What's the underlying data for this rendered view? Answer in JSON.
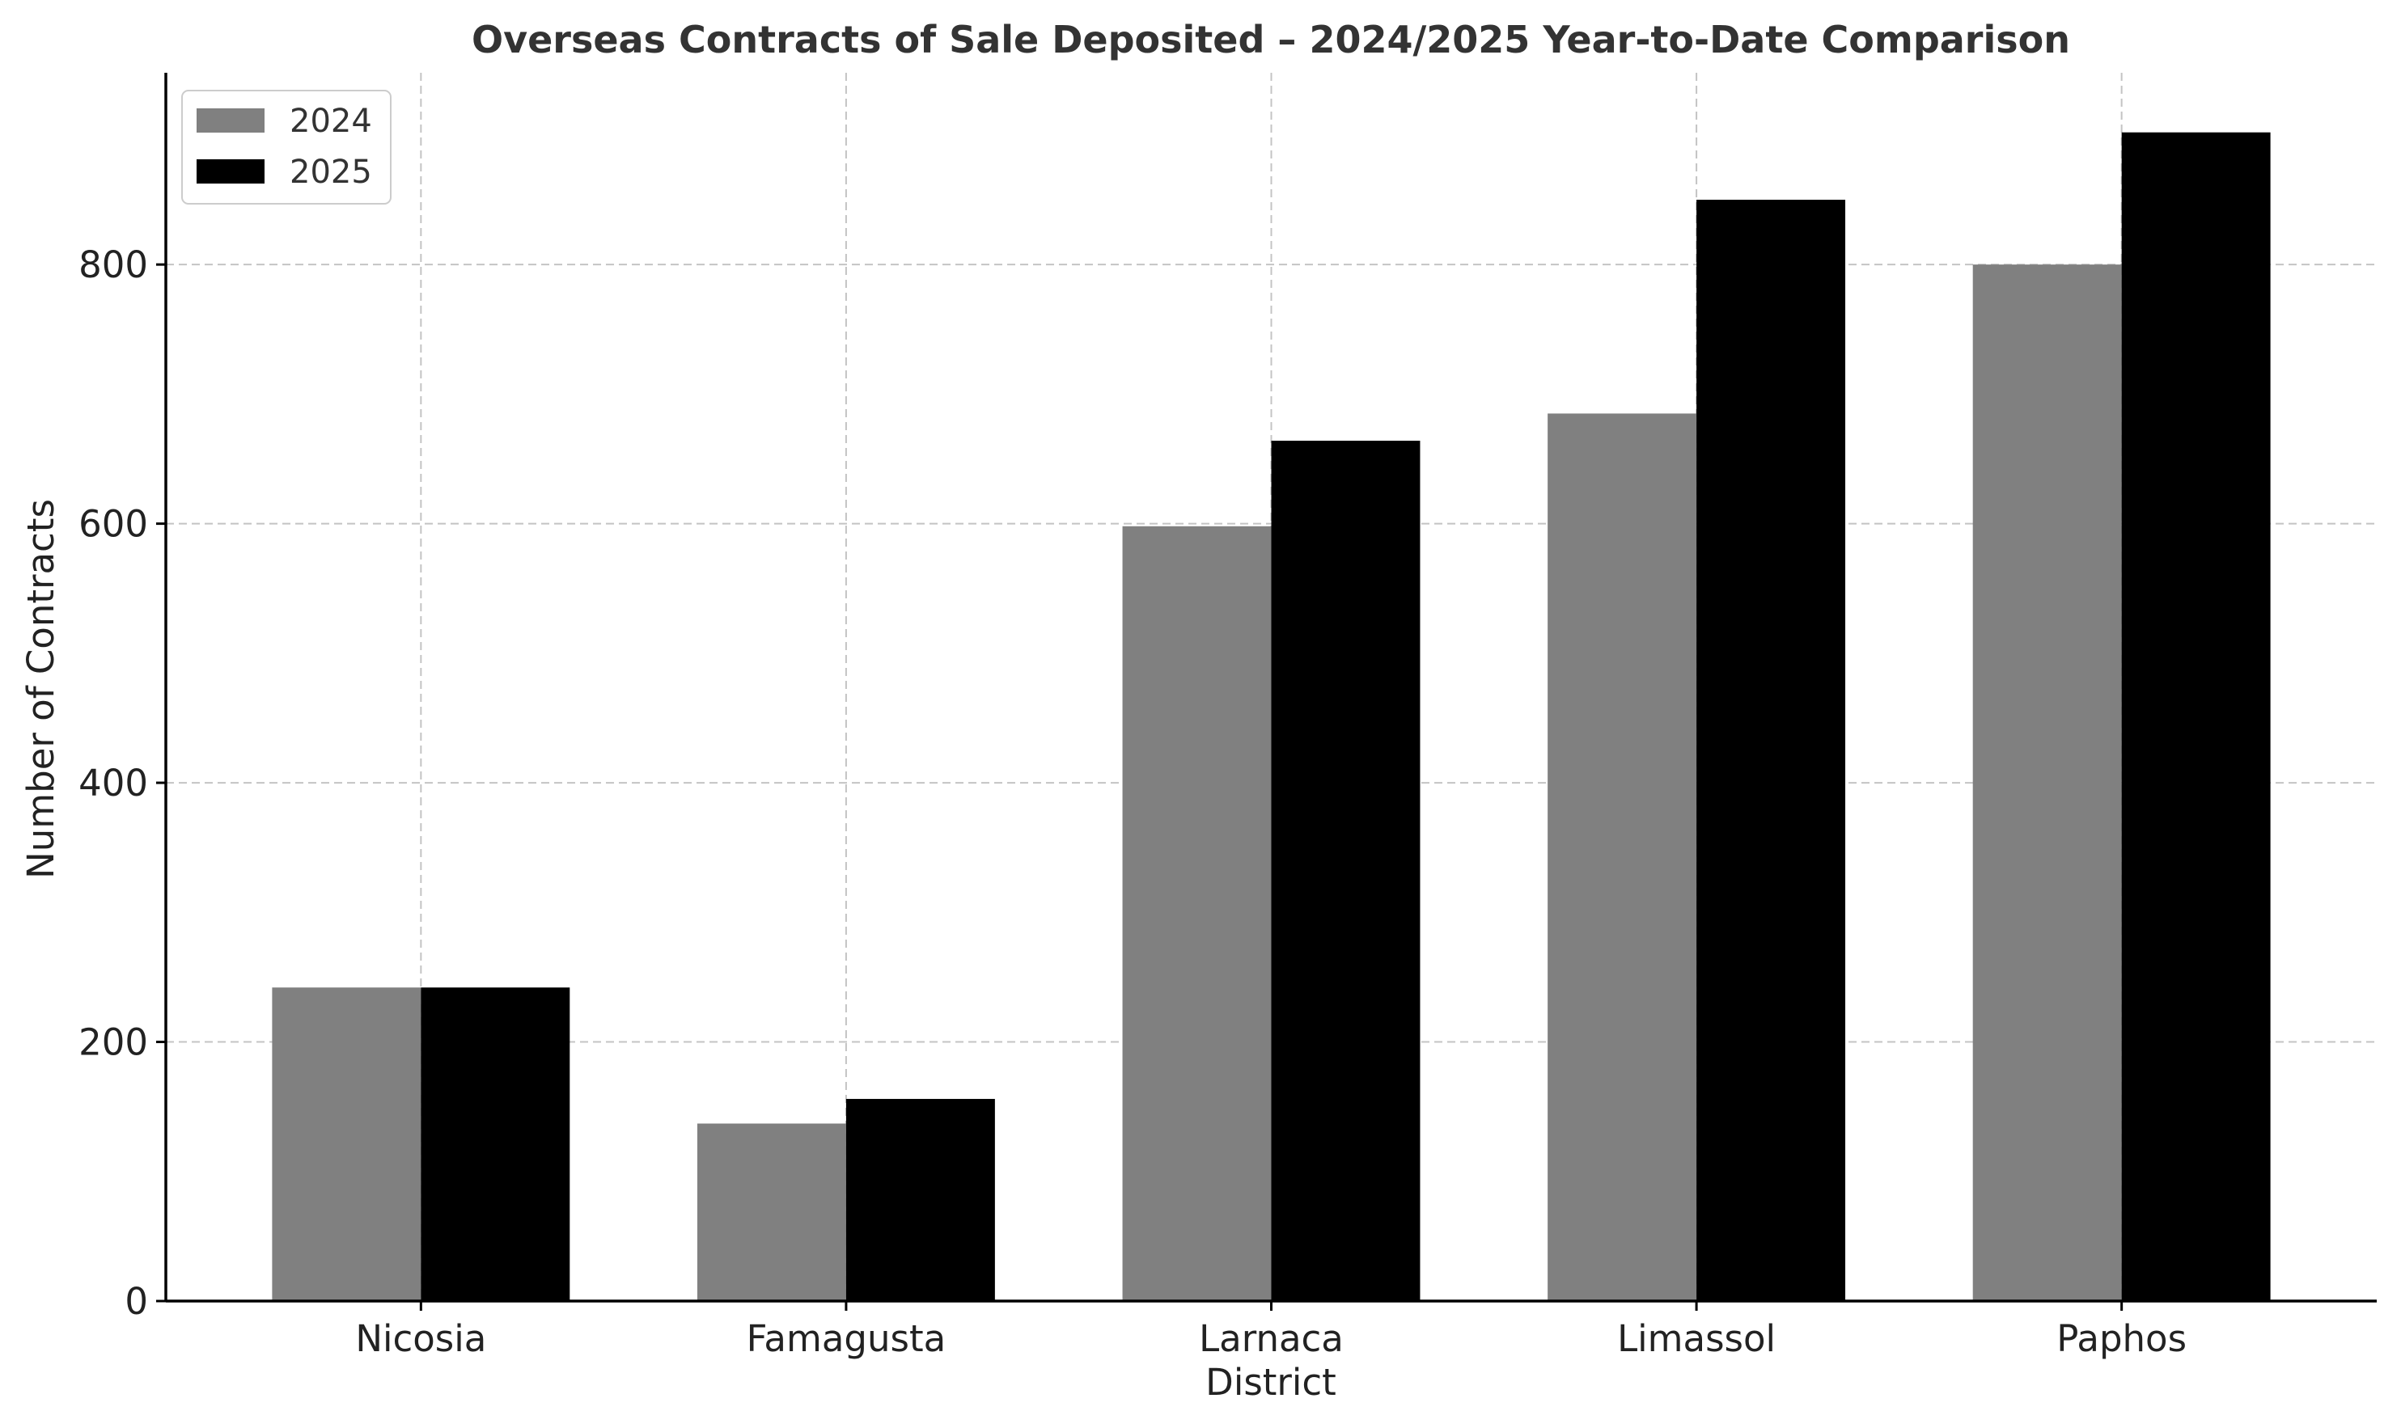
{
  "chart_data": {
    "type": "bar",
    "title": "Overseas Contracts of Sale Deposited – 2024/2025 Year-to-Date Comparison",
    "xlabel": "District",
    "ylabel": "Number of Contracts",
    "categories": [
      "Nicosia",
      "Famagusta",
      "Larnaca",
      "Limassol",
      "Paphos"
    ],
    "series": [
      {
        "name": "2024",
        "color": "#808080",
        "values": [
          242,
          137,
          598,
          685,
          800
        ]
      },
      {
        "name": "2025",
        "color": "#000000",
        "values": [
          242,
          156,
          664,
          850,
          902
        ]
      }
    ],
    "ylim": [
      0,
      948
    ],
    "yticks": [
      0,
      200,
      400,
      600,
      800
    ],
    "grid": true,
    "legend_position": "top-left"
  }
}
